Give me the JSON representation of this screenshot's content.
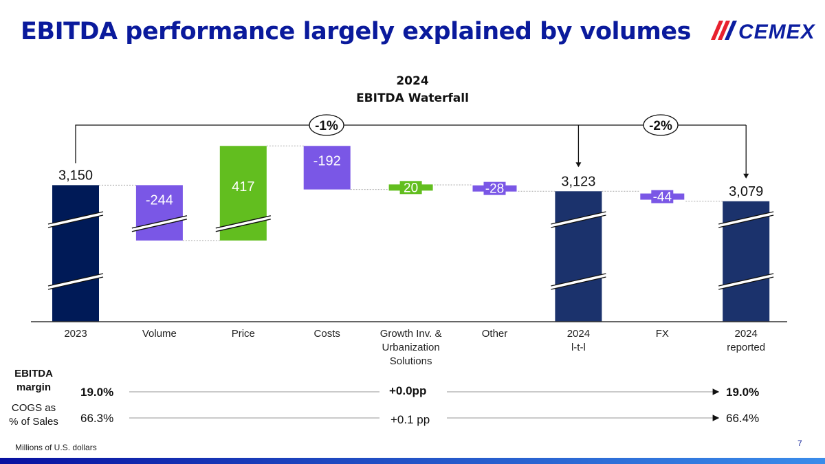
{
  "header": {
    "title": "EBITDA performance largely explained by volumes",
    "logo_text": "CEMEX"
  },
  "colors": {
    "title": "#0a1a9c",
    "navy_2023": "#001a57",
    "navy_2024": "#1b326c",
    "decrease": "#7a57e6",
    "increase": "#62be1f",
    "logo_red": "#e8212e",
    "logo_blue": "#0c1ea0"
  },
  "chart_data": {
    "type": "waterfall",
    "title_line1": "2024",
    "title_line2": "EBITDA Waterfall",
    "units": "Millions of U.S. dollars",
    "categories": [
      {
        "label": "2023",
        "value": 3150,
        "kind": "total",
        "label_text": "3,150"
      },
      {
        "label": "Volume",
        "value": -244,
        "kind": "delta",
        "label_text": "-244"
      },
      {
        "label": "Price",
        "value": 417,
        "kind": "delta",
        "label_text": "417"
      },
      {
        "label": "Costs",
        "value": -192,
        "kind": "delta",
        "label_text": "-192"
      },
      {
        "label": "Growth Inv. & Urbanization Solutions",
        "value": 20,
        "kind": "delta",
        "label_text": "20"
      },
      {
        "label": "Other",
        "value": -28,
        "kind": "delta",
        "label_text": "-28"
      },
      {
        "label": "2024 l-t-l",
        "value": 3123,
        "kind": "total",
        "label_text": "3,123"
      },
      {
        "label": "FX",
        "value": -44,
        "kind": "delta",
        "label_text": "-44"
      },
      {
        "label": "2024 reported",
        "value": 3079,
        "kind": "total",
        "label_text": "3,079"
      }
    ],
    "category_label_lines": [
      [
        "2023"
      ],
      [
        "Volume"
      ],
      [
        "Price"
      ],
      [
        "Costs"
      ],
      [
        "Growth Inv. &",
        "Urbanization",
        "Solutions"
      ],
      [
        "Other"
      ],
      [
        "2024",
        "l-t-l"
      ],
      [
        "FX"
      ],
      [
        "2024",
        "reported"
      ]
    ],
    "brackets": [
      {
        "from": "2023",
        "to": "2024 l-t-l",
        "label": "-1%"
      },
      {
        "from": "2024 l-t-l",
        "to": "2024 reported",
        "label": "-2%"
      }
    ],
    "axis_break": true
  },
  "metrics": {
    "ebitda_margin": {
      "label_line1": "EBITDA",
      "label_line2": "margin",
      "start": "19.0%",
      "change": "+0.0pp",
      "end": "19.0%"
    },
    "cogs": {
      "label_line1": "COGS as",
      "label_line2": "% of Sales",
      "start": "66.3%",
      "change": "+0.1 pp",
      "end": "66.4%"
    }
  },
  "footer": {
    "note": "Millions of U.S. dollars",
    "page_number": "7"
  }
}
